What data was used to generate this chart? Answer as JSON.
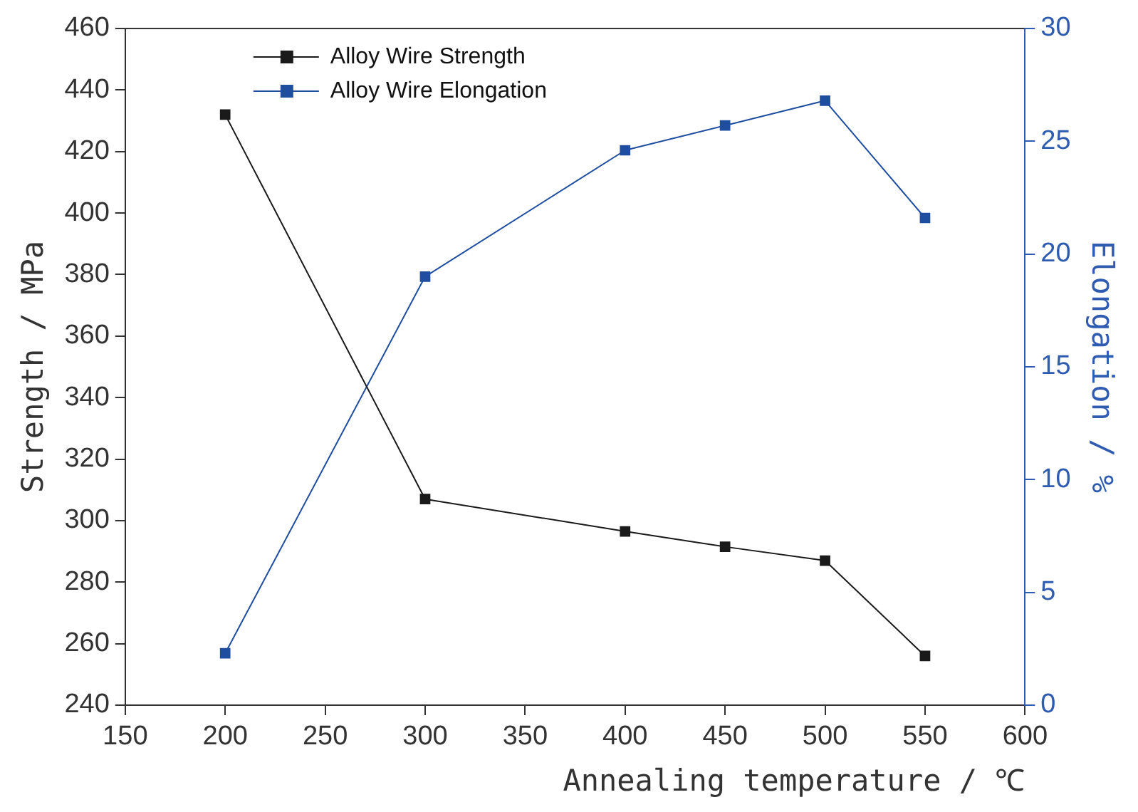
{
  "chart_data": {
    "type": "line",
    "xlabel": "Annealing temperature / ℃",
    "ylabel": "Strength / MPa",
    "y2label": "Elongation / %",
    "x": [
      200,
      300,
      400,
      450,
      500,
      550
    ],
    "series": [
      {
        "name": "Alloy Wire Strength",
        "color": "#1a1a1a",
        "values": [
          432,
          307,
          296.5,
          291.5,
          287,
          256
        ]
      },
      {
        "name": "Alloy Wire Elongation",
        "color": "#1f4ea0",
        "axis": "y2",
        "values": [
          2.3,
          19.0,
          24.6,
          25.7,
          26.8,
          21.6
        ]
      }
    ],
    "xlim": [
      150,
      600
    ],
    "xticks": [
      150,
      200,
      250,
      300,
      350,
      400,
      450,
      500,
      550,
      600
    ],
    "ylim": [
      240,
      460
    ],
    "yticks": [
      240,
      260,
      280,
      300,
      320,
      340,
      360,
      380,
      400,
      420,
      440,
      460
    ],
    "y2lim": [
      0,
      30
    ],
    "y2ticks": [
      0,
      5,
      10,
      15,
      20,
      25,
      30
    ],
    "legend": "top left",
    "marker": "square",
    "line_style": "solid",
    "grid": false
  }
}
